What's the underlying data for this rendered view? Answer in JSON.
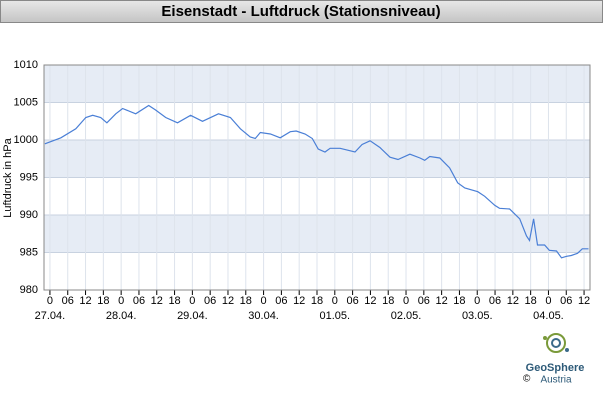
{
  "chart_data": {
    "type": "line",
    "title": "Eisenstadt - Luftdruck (Stationsniveau)",
    "ylabel": "Luftdruck in hPa",
    "ylim": [
      980,
      1010
    ],
    "yticks": [
      980,
      985,
      990,
      995,
      1000,
      1005,
      1010
    ],
    "xlim": [
      -2,
      182
    ],
    "xticks": [
      {
        "value": 0,
        "label": "0"
      },
      {
        "value": 6,
        "label": "06"
      },
      {
        "value": 12,
        "label": "12"
      },
      {
        "value": 18,
        "label": "18"
      },
      {
        "value": 24,
        "label": "0"
      },
      {
        "value": 30,
        "label": "06"
      },
      {
        "value": 36,
        "label": "12"
      },
      {
        "value": 42,
        "label": "18"
      },
      {
        "value": 48,
        "label": "0"
      },
      {
        "value": 54,
        "label": "06"
      },
      {
        "value": 60,
        "label": "12"
      },
      {
        "value": 66,
        "label": "18"
      },
      {
        "value": 72,
        "label": "0"
      },
      {
        "value": 78,
        "label": "06"
      },
      {
        "value": 84,
        "label": "12"
      },
      {
        "value": 90,
        "label": "18"
      },
      {
        "value": 96,
        "label": "0"
      },
      {
        "value": 102,
        "label": "06"
      },
      {
        "value": 108,
        "label": "12"
      },
      {
        "value": 114,
        "label": "18"
      },
      {
        "value": 120,
        "label": "0"
      },
      {
        "value": 126,
        "label": "06"
      },
      {
        "value": 132,
        "label": "12"
      },
      {
        "value": 138,
        "label": "18"
      },
      {
        "value": 144,
        "label": "0"
      },
      {
        "value": 150,
        "label": "06"
      },
      {
        "value": 156,
        "label": "12"
      },
      {
        "value": 162,
        "label": "18"
      },
      {
        "value": 168,
        "label": "0"
      },
      {
        "value": 174,
        "label": "06"
      },
      {
        "value": 180,
        "label": "12"
      }
    ],
    "date_labels": [
      {
        "value": 0,
        "label": "27.04."
      },
      {
        "value": 24,
        "label": "28.04."
      },
      {
        "value": 48,
        "label": "29.04."
      },
      {
        "value": 72,
        "label": "30.04."
      },
      {
        "value": 96,
        "label": "01.05."
      },
      {
        "value": 120,
        "label": "02.05."
      },
      {
        "value": 144,
        "label": "03.05."
      },
      {
        "value": 168,
        "label": "04.05."
      }
    ],
    "grid": true,
    "bands": true,
    "x": [
      -1.7,
      3.7,
      8.7,
      12.1,
      14.4,
      17.1,
      19.2,
      22.2,
      24.5,
      28.9,
      33.3,
      35.6,
      39,
      43,
      47.4,
      51.4,
      56.8,
      60.8,
      64.2,
      67.5,
      69.2,
      70.9,
      74.3,
      77.6,
      81,
      83,
      86,
      88.4,
      90.4,
      92.7,
      94.4,
      97.8,
      102.8,
      105.2,
      107.9,
      111.2,
      114.6,
      117.3,
      121.3,
      124.7,
      126.3,
      128,
      131.4,
      134.7,
      137.4,
      139.8,
      144.2,
      146.5,
      149.9,
      151.5,
      154.9,
      158.3,
      160.6,
      161.6,
      163,
      164.3,
      166.7,
      168.3,
      170.7,
      172.4,
      174.1,
      175.7,
      177.8,
      179.4,
      181.5
    ],
    "series": [
      {
        "name": "Luftdruck",
        "color": "#4a7fd6",
        "values": [
          999.5,
          1000.3,
          1001.5,
          1003.0,
          1003.3,
          1003.0,
          1002.3,
          1003.5,
          1004.2,
          1003.5,
          1004.6,
          1004.0,
          1003.0,
          1002.3,
          1003.3,
          1002.5,
          1003.5,
          1003.0,
          1001.5,
          1000.4,
          1000.2,
          1001.0,
          1000.8,
          1000.3,
          1001.1,
          1001.2,
          1000.8,
          1000.2,
          998.8,
          998.4,
          998.9,
          998.9,
          998.4,
          999.4,
          999.9,
          999.0,
          997.7,
          997.4,
          998.1,
          997.6,
          997.3,
          997.8,
          997.6,
          996.3,
          994.3,
          993.6,
          993.1,
          992.5,
          991.3,
          990.9,
          990.8,
          989.5,
          987.2,
          986.6,
          989.5,
          986.0,
          986.0,
          985.3,
          985.2,
          984.3,
          984.5,
          984.6,
          984.9,
          985.5,
          985.5
        ]
      }
    ]
  },
  "logo": {
    "name1": "GeoSphere",
    "name2": "Austria",
    "copyright": "©"
  }
}
